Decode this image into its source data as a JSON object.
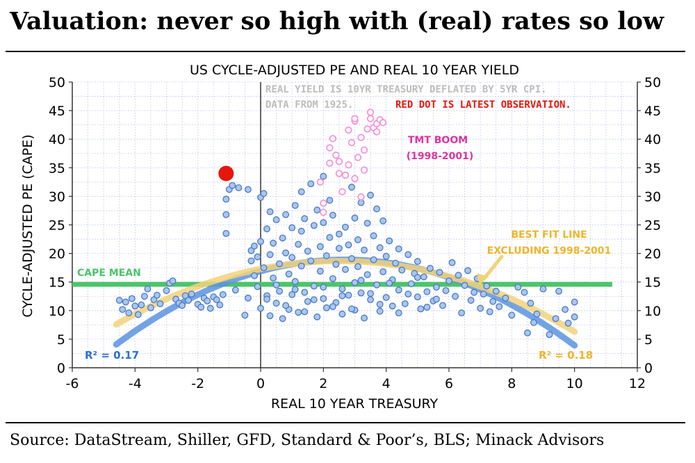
{
  "headline": "Valuation: never so high with (real) rates so low",
  "source": "Source: DataStream, Shiller, GFD, Standard & Poor’s, BLS; Minack Advisors",
  "colors": {
    "points": "#a9c7ea",
    "points_edge": "#4a78c8",
    "tmt_points": "#f595d6",
    "latest": "#e8150c",
    "cape_mean": "#4cc46a",
    "fit_blue": "#5b93e0",
    "fit_yellow": "#f2d27a",
    "tmt_label": "#e0339f",
    "fit_label": "#f0b428",
    "r2_blue": "#2a6fd1",
    "r2_yellow": "#f0b428",
    "note_grey": "#bdbdbd",
    "note_red": "#e8150c",
    "grid": "#c8cef0"
  },
  "chart_data": {
    "type": "scatter",
    "title": "US CYCLE-ADJUSTED PE AND REAL 10 YEAR YIELD",
    "xlabel": "REAL 10 YEAR TREASURY",
    "ylabel": "CYCLE-ADJUSTED PE (CAPE)",
    "xlim": [
      -6,
      12
    ],
    "ylim": [
      0,
      50
    ],
    "xticks": [
      -6,
      -4,
      -2,
      0,
      2,
      4,
      6,
      8,
      10,
      12
    ],
    "yticks": [
      0,
      5,
      10,
      15,
      20,
      25,
      30,
      35,
      40,
      45,
      50
    ],
    "grid": true,
    "annotations": {
      "note_line1": "REAL YIELD IS 10YR TREASURY DEFLATED BY 5YR CPI.",
      "note_line2": "DATA FROM 1925.",
      "note_red": "RED DOT IS LATEST OBSERVATION.",
      "tmt_line1": "TMT BOOM",
      "tmt_line2": "(1998-2001)",
      "fit_line1": "BEST FIT LINE",
      "fit_line2": "EXCLUDING 1998-2001",
      "cape_mean_label": "CAPE MEAN",
      "r2_all": "R² = 0.17",
      "r2_excl": "R² = 0.18"
    },
    "cape_mean": 14.6,
    "latest_point": {
      "x": -1.1,
      "y": 34
    },
    "fit_all": {
      "name": "Best fit (all data)",
      "a": -0.28,
      "b": 1.5,
      "c": 16.9,
      "x_range": [
        -4.6,
        10
      ]
    },
    "fit_excl": {
      "name": "Best fit excluding 1998-2001",
      "a": -0.22,
      "b": 1.1,
      "c": 17.3,
      "x_range": [
        -4.6,
        10
      ]
    },
    "series": [
      {
        "name": "Observations",
        "points": [
          [
            -4.5,
            11.8
          ],
          [
            -4.4,
            10.2
          ],
          [
            -4.3,
            11.5
          ],
          [
            -4.2,
            9.6
          ],
          [
            -4.1,
            12.1
          ],
          [
            -4.0,
            10.8
          ],
          [
            -3.9,
            9.3
          ],
          [
            -3.8,
            11.0
          ],
          [
            -3.7,
            12.5
          ],
          [
            -3.6,
            13.8
          ],
          [
            -3.5,
            10.5
          ],
          [
            -3.4,
            11.9
          ],
          [
            -3.3,
            12.7
          ],
          [
            -3.2,
            11.2
          ],
          [
            -3.0,
            13.5
          ],
          [
            -2.9,
            14.8
          ],
          [
            -2.8,
            15.2
          ],
          [
            -2.7,
            12.0
          ],
          [
            -2.6,
            11.3
          ],
          [
            -2.5,
            10.9
          ],
          [
            -2.4,
            12.6
          ],
          [
            -2.3,
            11.8
          ],
          [
            -2.2,
            12.9
          ],
          [
            -2.0,
            11.1
          ],
          [
            -1.9,
            10.6
          ],
          [
            -1.8,
            12.2
          ],
          [
            -1.7,
            11.7
          ],
          [
            -1.6,
            10.4
          ],
          [
            -1.5,
            12.4
          ],
          [
            -1.4,
            11.9
          ],
          [
            -1.2,
            12.8
          ],
          [
            -1.1,
            23.5
          ],
          [
            -1.1,
            26.8
          ],
          [
            -1.1,
            29.5
          ],
          [
            -1.0,
            31.2
          ],
          [
            -0.9,
            31.9
          ],
          [
            -0.7,
            31.5
          ],
          [
            -0.4,
            31.2
          ],
          [
            -1.3,
            11.0
          ],
          [
            -0.8,
            13.6
          ],
          [
            -0.5,
            9.2
          ],
          [
            -0.4,
            12.2
          ],
          [
            -0.3,
            20.5
          ],
          [
            -0.3,
            18.7
          ],
          [
            -0.2,
            21.3
          ],
          [
            -0.2,
            16.1
          ],
          [
            -0.1,
            19.4
          ],
          [
            -0.1,
            14.2
          ],
          [
            0.0,
            22.1
          ],
          [
            0.0,
            10.4
          ],
          [
            0.0,
            29.8
          ],
          [
            0.1,
            17.5
          ],
          [
            0.1,
            30.5
          ],
          [
            0.2,
            12.6
          ],
          [
            0.2,
            24.3
          ],
          [
            0.3,
            19.8
          ],
          [
            0.3,
            9.1
          ],
          [
            0.3,
            27.3
          ],
          [
            0.4,
            15.7
          ],
          [
            0.4,
            21.8
          ],
          [
            0.5,
            11.3
          ],
          [
            0.5,
            25.9
          ],
          [
            0.6,
            18.2
          ],
          [
            0.6,
            13.4
          ],
          [
            0.7,
            22.7
          ],
          [
            0.7,
            8.6
          ],
          [
            0.8,
            20.1
          ],
          [
            0.8,
            26.8
          ],
          [
            0.9,
            16.4
          ],
          [
            0.9,
            10.2
          ],
          [
            1.0,
            24.5
          ],
          [
            1.0,
            19.3
          ],
          [
            1.0,
            12.8
          ],
          [
            1.1,
            28.4
          ],
          [
            1.1,
            15.1
          ],
          [
            1.2,
            21.6
          ],
          [
            1.2,
            9.7
          ],
          [
            1.3,
            23.9
          ],
          [
            1.3,
            17.8
          ],
          [
            1.3,
            30.8
          ],
          [
            1.4,
            13.2
          ],
          [
            1.4,
            26.1
          ],
          [
            1.5,
            20.4
          ],
          [
            1.5,
            11.6
          ],
          [
            1.6,
            32.2
          ],
          [
            1.6,
            18.7
          ],
          [
            1.7,
            24.9
          ],
          [
            1.7,
            14.3
          ],
          [
            1.8,
            8.9
          ],
          [
            1.8,
            27.6
          ],
          [
            1.9,
            21.2
          ],
          [
            1.9,
            16.9
          ],
          [
            2.0,
            33.5
          ],
          [
            2.0,
            12.1
          ],
          [
            2.0,
            25.4
          ],
          [
            2.1,
            19.6
          ],
          [
            2.1,
            10.5
          ],
          [
            2.2,
            29.3
          ],
          [
            2.2,
            22.8
          ],
          [
            2.3,
            15.6
          ],
          [
            2.3,
            26.7
          ],
          [
            2.4,
            18.1
          ],
          [
            2.4,
            11.4
          ],
          [
            2.5,
            23.4
          ],
          [
            2.5,
            20.9
          ],
          [
            2.6,
            13.8
          ],
          [
            2.6,
            9.4
          ],
          [
            2.7,
            24.6
          ],
          [
            2.7,
            17.2
          ],
          [
            2.8,
            21.5
          ],
          [
            2.8,
            12.7
          ],
          [
            2.9,
            31.6
          ],
          [
            2.9,
            19.1
          ],
          [
            3.0,
            26.2
          ],
          [
            3.0,
            14.9
          ],
          [
            3.0,
            10.1
          ],
          [
            3.1,
            22.4
          ],
          [
            3.1,
            17.7
          ],
          [
            3.2,
            28.9
          ],
          [
            3.2,
            13.1
          ],
          [
            3.3,
            20.6
          ],
          [
            3.3,
            8.7
          ],
          [
            3.4,
            25.3
          ],
          [
            3.4,
            16.3
          ],
          [
            3.5,
            30.2
          ],
          [
            3.5,
            11.9
          ],
          [
            3.6,
            23.1
          ],
          [
            3.6,
            18.9
          ],
          [
            3.7,
            14.5
          ],
          [
            3.7,
            27.8
          ],
          [
            3.8,
            21.0
          ],
          [
            3.8,
            9.9
          ],
          [
            3.9,
            25.7
          ],
          [
            3.9,
            16.8
          ],
          [
            4.0,
            12.3
          ],
          [
            4.0,
            19.5
          ],
          [
            4.1,
            22.2
          ],
          [
            4.2,
            15.4
          ],
          [
            4.2,
            10.8
          ],
          [
            4.3,
            18.3
          ],
          [
            4.4,
            20.8
          ],
          [
            4.4,
            13.6
          ],
          [
            4.5,
            17.1
          ],
          [
            4.6,
            11.2
          ],
          [
            4.7,
            19.8
          ],
          [
            4.8,
            14.7
          ],
          [
            4.9,
            16.5
          ],
          [
            5.0,
            12.4
          ],
          [
            5.0,
            18.6
          ],
          [
            5.1,
            10.3
          ],
          [
            5.2,
            15.9
          ],
          [
            5.3,
            13.3
          ],
          [
            5.4,
            17.4
          ],
          [
            5.5,
            11.7
          ],
          [
            5.6,
            14.1
          ],
          [
            5.7,
            16.7
          ],
          [
            5.8,
            10.9
          ],
          [
            5.9,
            13.5
          ],
          [
            6.0,
            15.2
          ],
          [
            6.1,
            18.4
          ],
          [
            6.2,
            12.5
          ],
          [
            6.3,
            16.2
          ],
          [
            6.4,
            9.6
          ],
          [
            6.5,
            14.4
          ],
          [
            6.6,
            17.0
          ],
          [
            6.7,
            11.8
          ],
          [
            6.8,
            13.2
          ],
          [
            6.9,
            15.6
          ],
          [
            7.0,
            10.4
          ],
          [
            7.1,
            12.9
          ],
          [
            7.2,
            14.3
          ],
          [
            7.3,
            9.8
          ],
          [
            7.4,
            11.6
          ],
          [
            7.5,
            13.4
          ],
          [
            7.6,
            10.7
          ],
          [
            7.8,
            12.2
          ],
          [
            8.0,
            9.2
          ],
          [
            8.2,
            14.1
          ],
          [
            8.4,
            13.2
          ],
          [
            8.5,
            6.1
          ],
          [
            8.6,
            11.3
          ],
          [
            8.7,
            7.9
          ],
          [
            8.8,
            9.4
          ],
          [
            9.0,
            13.8
          ],
          [
            9.2,
            5.8
          ],
          [
            9.4,
            8.6
          ],
          [
            9.5,
            13.4
          ],
          [
            9.7,
            10.2
          ],
          [
            9.8,
            7.8
          ],
          [
            10.0,
            11.5
          ],
          [
            10.0,
            8.9
          ],
          [
            0.2,
            12.0
          ],
          [
            0.5,
            14.5
          ],
          [
            0.8,
            10.9
          ],
          [
            1.1,
            13.7
          ],
          [
            1.4,
            9.8
          ],
          [
            1.7,
            11.9
          ],
          [
            2.0,
            14.1
          ],
          [
            2.3,
            10.7
          ],
          [
            2.6,
            12.6
          ],
          [
            2.9,
            10.3
          ],
          [
            3.2,
            15.3
          ],
          [
            3.5,
            13.0
          ],
          [
            3.8,
            11.1
          ],
          [
            4.1,
            14.8
          ],
          [
            4.4,
            9.6
          ],
          [
            4.7,
            12.9
          ],
          [
            5.0,
            15.8
          ],
          [
            5.3,
            10.6
          ],
          [
            5.6,
            12.0
          ]
        ]
      },
      {
        "name": "TMT boom (1998-2001)",
        "points": [
          [
            1.9,
            32.5
          ],
          [
            2.0,
            28.8
          ],
          [
            2.0,
            27.2
          ],
          [
            2.2,
            35.8
          ],
          [
            2.2,
            38.5
          ],
          [
            2.3,
            40.1
          ],
          [
            2.4,
            37.2
          ],
          [
            2.5,
            36.1
          ],
          [
            2.5,
            34.0
          ],
          [
            2.6,
            30.8
          ],
          [
            2.7,
            33.7
          ],
          [
            2.8,
            35.5
          ],
          [
            2.8,
            41.6
          ],
          [
            2.9,
            39.4
          ],
          [
            3.0,
            43.2
          ],
          [
            3.0,
            33.1
          ],
          [
            3.1,
            36.8
          ],
          [
            3.2,
            40.3
          ],
          [
            3.2,
            29.9
          ],
          [
            3.3,
            38.1
          ],
          [
            3.4,
            41.8
          ],
          [
            3.5,
            43.6
          ],
          [
            3.5,
            44.7
          ],
          [
            3.6,
            42.0
          ],
          [
            3.7,
            41.3
          ],
          [
            3.7,
            42.7
          ],
          [
            3.8,
            43.4
          ],
          [
            3.9,
            42.9
          ],
          [
            3.3,
            34.6
          ],
          [
            3.0,
            43.6
          ]
        ]
      }
    ]
  }
}
